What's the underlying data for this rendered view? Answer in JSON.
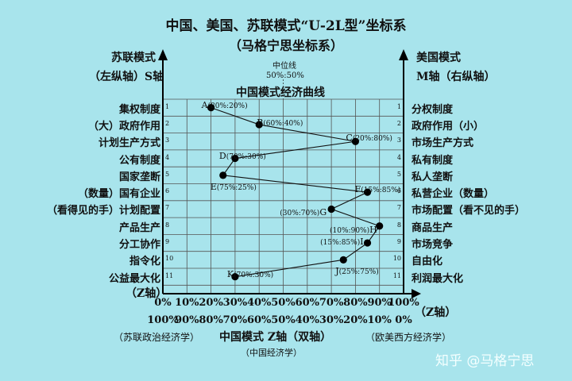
{
  "title": "中国、美国、苏联模式“U-2L型”坐标系",
  "subtitle": "（马格宁思坐标系）",
  "left_axis": {
    "line1": "苏联模式",
    "line2": "（左纵轴）S轴"
  },
  "right_axis": {
    "line1": "美国模式",
    "line2": "M轴（右纵轴）"
  },
  "median": {
    "line1": "中位线",
    "line2": "50%:50%"
  },
  "curve_title": "中国模式经济曲线",
  "left_labels": [
    "集权制度",
    "（大）政府作用",
    "计划生产方式",
    "公有制度",
    "国家垄断",
    "（数量）国有企业",
    "（看得见的手）计划配置",
    "产品生产",
    "分工协作",
    "指令化",
    "公益最大化"
  ],
  "right_labels": [
    "分权制度",
    "政府作用（小）",
    "市场生产方式",
    "私有制度",
    "私人垄断",
    "私营企业（数量）",
    "市场配置（看不见的手）",
    "商品生产",
    "市场竞争",
    "自由化",
    "利润最大化"
  ],
  "row_numbers": [
    "1",
    "2",
    "3",
    "4",
    "5",
    "6",
    "7",
    "8",
    "9",
    "10",
    "11"
  ],
  "z_axis_left": "（Z轴）",
  "z_axis_right": "（Z轴）",
  "top_scale": [
    "0%",
    "10%",
    "20%",
    "30%",
    "40%",
    "50%",
    "60%",
    "70%",
    "80%",
    "90%",
    "100%"
  ],
  "bottom_scale": [
    "100%",
    "90%",
    "80%",
    "70%",
    "60%",
    "50%",
    "40%",
    "30%",
    "20%",
    "10%",
    "0%"
  ],
  "foot_left": "（苏联政治经济学）",
  "foot_center": "中国模式 Z轴（双轴）",
  "foot_center_sub": "（中国经济学）",
  "foot_right": "（欧美西方经济学）",
  "watermark": "知乎 @马格宁思",
  "chart_data": {
    "type": "line",
    "x_range": [
      0,
      100
    ],
    "rows": 11,
    "points": [
      {
        "name": "A",
        "ratio": "(80%:20%)",
        "row": 1,
        "x": 20
      },
      {
        "name": "B",
        "ratio": "(60%:40%)",
        "row": 2,
        "x": 40
      },
      {
        "name": "C",
        "ratio": "(20%:80%)",
        "row": 3,
        "x": 80
      },
      {
        "name": "D",
        "ratio": "(70%:30%)",
        "row": 4,
        "x": 30
      },
      {
        "name": "E",
        "ratio": "(75%:25%)",
        "row": 5,
        "x": 25
      },
      {
        "name": "F",
        "ratio": "(15%:85%)",
        "row": 6,
        "x": 85
      },
      {
        "name": "G",
        "ratio": "(30%:70%)",
        "row": 7,
        "x": 70
      },
      {
        "name": "H",
        "ratio": "(10%:90%)",
        "row": 8,
        "x": 90
      },
      {
        "name": "I",
        "ratio": "(15%:85%)",
        "row": 9,
        "x": 85
      },
      {
        "name": "J",
        "ratio": "(25%:75%)",
        "row": 10,
        "x": 75
      },
      {
        "name": "K",
        "ratio": "(70%:30%)",
        "row": 11,
        "x": 30
      }
    ]
  }
}
